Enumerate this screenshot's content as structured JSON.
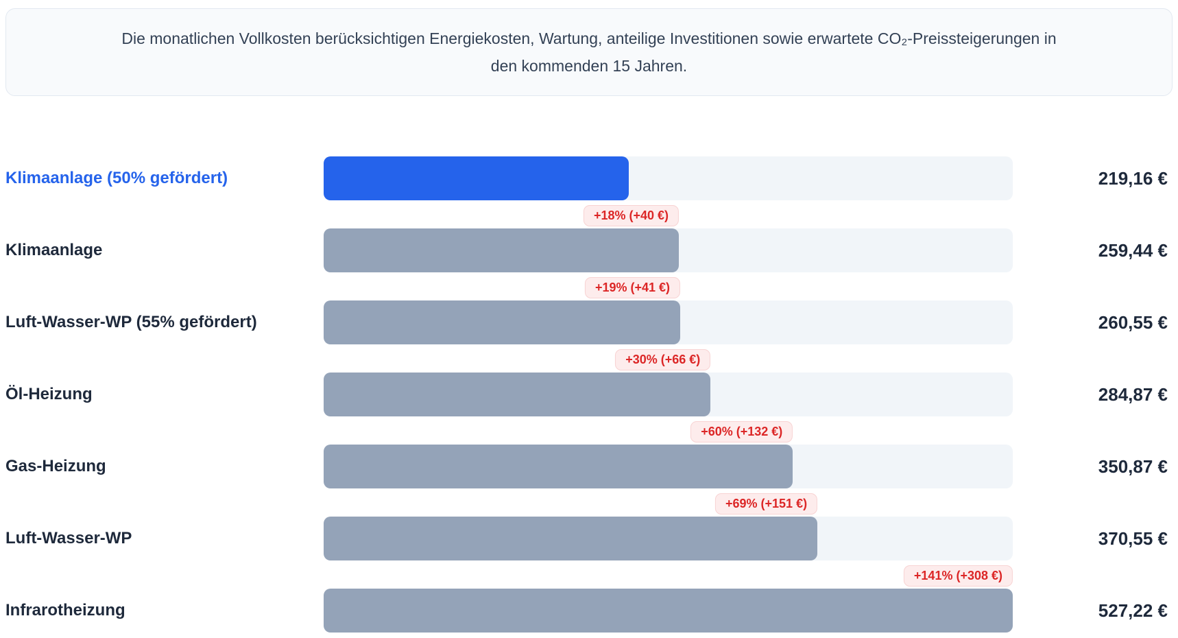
{
  "info_banner": {
    "text": "Die monatlichen Vollkosten berücksichtigen Energiekosten, Wartung, anteilige Investitionen sowie erwartete CO₂-Preissteigerungen in den kommenden 15 Jahren."
  },
  "chart_data": {
    "type": "bar",
    "orientation": "horizontal",
    "title": "",
    "xlabel": "",
    "ylabel": "",
    "xlim": [
      0,
      527.22
    ],
    "grid": false,
    "legend": false,
    "rows": [
      {
        "label": "Klimaanlage (50% gefördert)",
        "value": 219.16,
        "value_label": "219,16 €",
        "badge": null,
        "highlighted": true
      },
      {
        "label": "Klimaanlage",
        "value": 259.44,
        "value_label": "259,44 €",
        "badge": "+18% (+40 €)",
        "highlighted": false
      },
      {
        "label": "Luft-Wasser-WP (55% gefördert)",
        "value": 260.55,
        "value_label": "260,55 €",
        "badge": "+19% (+41 €)",
        "highlighted": false
      },
      {
        "label": "Öl-Heizung",
        "value": 284.87,
        "value_label": "284,87 €",
        "badge": "+30% (+66 €)",
        "highlighted": false
      },
      {
        "label": "Gas-Heizung",
        "value": 350.87,
        "value_label": "350,87 €",
        "badge": "+60% (+132 €)",
        "highlighted": false
      },
      {
        "label": "Luft-Wasser-WP",
        "value": 370.55,
        "value_label": "370,55 €",
        "badge": "+69% (+151 €)",
        "highlighted": false
      },
      {
        "label": "Infrarotheizung",
        "value": 527.22,
        "value_label": "527,22 €",
        "badge": "+141% (+308 €)",
        "highlighted": false
      }
    ],
    "colors": {
      "highlight_bar": "#2563eb",
      "highlight_text": "#2563eb",
      "bar": "#94a3b8",
      "track": "#f1f5f9",
      "badge_text": "#dc2626",
      "badge_bg": "#fdecec",
      "badge_border": "#f8d3d3",
      "text": "#1e293b"
    }
  }
}
